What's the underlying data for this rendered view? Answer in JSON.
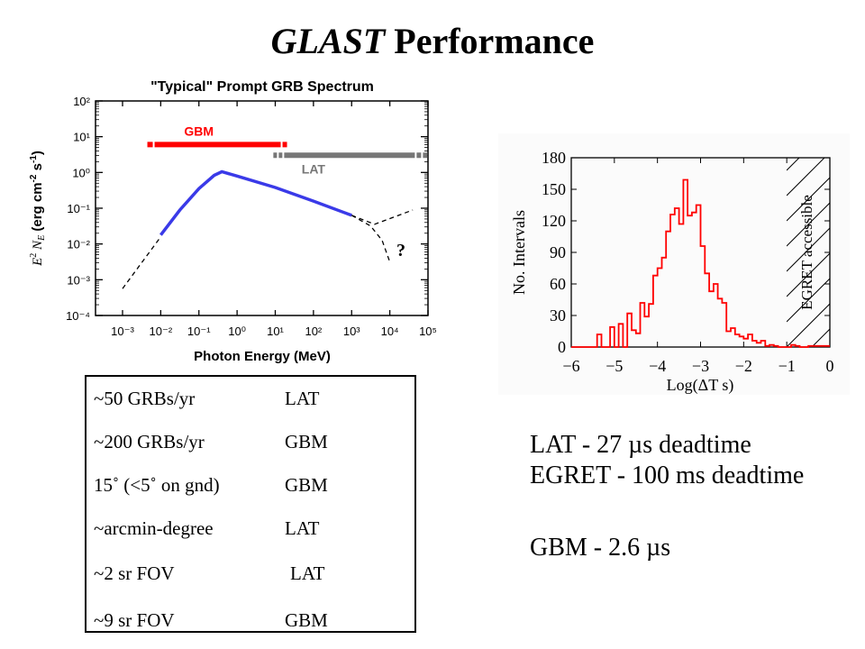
{
  "slide": {
    "title_italic": "GLAST",
    "title_rest": " Performance"
  },
  "chart_data": [
    {
      "type": "line",
      "title": "\"Typical\" Prompt GRB Spectrum",
      "xlabel": "Photon Energy (MeV)",
      "ylabel": "E² N_E (erg cm⁻² s⁻¹)",
      "xscale": "log",
      "yscale": "log",
      "xlim": [
        0.0002,
        100000
      ],
      "ylim": [
        0.0001,
        100
      ],
      "x_ticks": [
        "10⁻³",
        "10⁻²",
        "10⁻¹",
        "10⁰",
        "10¹",
        "10²",
        "10³",
        "10⁴",
        "10⁵"
      ],
      "y_ticks": [
        "10²",
        "10¹",
        "10⁰",
        "10⁻¹",
        "10⁻²",
        "10⁻³",
        "10⁻⁴"
      ],
      "series": [
        {
          "name": "measured spectrum",
          "style": "solid",
          "color": "#3a3ae8",
          "log_points": [
            [
              -2.0,
              -1.75
            ],
            [
              -1.5,
              -1.05
            ],
            [
              -1.0,
              -0.45
            ],
            [
              -0.6,
              -0.08
            ],
            [
              -0.4,
              0.02
            ],
            [
              0.0,
              -0.1
            ],
            [
              1.0,
              -0.42
            ],
            [
              2.0,
              -0.8
            ],
            [
              3.0,
              -1.2
            ]
          ]
        },
        {
          "name": "low-energy extrapolation",
          "style": "dashed",
          "color": "#000000",
          "log_points": [
            [
              -3.0,
              -3.25
            ],
            [
              -2.0,
              -1.8
            ]
          ]
        },
        {
          "name": "high-energy extension",
          "style": "dashed",
          "color": "#000000",
          "log_points": [
            [
              3.0,
              -1.2
            ],
            [
              3.6,
              -1.45
            ],
            [
              4.6,
              -1.05
            ]
          ]
        },
        {
          "name": "high-energy cutoff",
          "style": "dashed",
          "color": "#000000",
          "log_points": [
            [
              3.0,
              -1.2
            ],
            [
              3.5,
              -1.5
            ],
            [
              3.8,
              -1.9
            ],
            [
              4.0,
              -2.5
            ]
          ]
        }
      ],
      "bands": [
        {
          "name": "GBM",
          "color": "#ff0000",
          "log_x_range": [
            -2.35,
            1.4
          ],
          "log_y": 0.78
        },
        {
          "name": "LAT",
          "color": "#777777",
          "log_x_range": [
            0.95,
            5.0
          ],
          "log_y": 0.48
        }
      ],
      "annotations": [
        "?"
      ]
    },
    {
      "type": "bar",
      "histogram": true,
      "title": "",
      "xlabel": "Log(ΔT s)",
      "ylabel": "No. Intervals",
      "xlim": [
        -6,
        0
      ],
      "ylim": [
        0,
        180
      ],
      "x_ticks": [
        "−6",
        "−5",
        "−4",
        "−3",
        "−2",
        "−1",
        "0"
      ],
      "y_ticks": [
        "0",
        "30",
        "60",
        "90",
        "120",
        "150",
        "180"
      ],
      "bin_width": 0.1,
      "bin_start": -6.0,
      "color": "#ff0000",
      "values": [
        0,
        0,
        0,
        0,
        0,
        0,
        12,
        0,
        0,
        19,
        0,
        22,
        0,
        32,
        16,
        13,
        42,
        29,
        41,
        68,
        75,
        85,
        110,
        126,
        132,
        117,
        159,
        125,
        128,
        135,
        96,
        70,
        53,
        60,
        46,
        42,
        15,
        18,
        12,
        10,
        8,
        12,
        6,
        4,
        6,
        1,
        2,
        1,
        0,
        0,
        0,
        2,
        1,
        0,
        0,
        1,
        1,
        1,
        1,
        1
      ],
      "shaded_region": {
        "label": "EGRET accessible",
        "x_range": [
          -1,
          0
        ]
      }
    }
  ],
  "table": {
    "rows": [
      {
        "feature": "~50 GRBs/yr",
        "instrument": "LAT"
      },
      {
        "feature": "~200 GRBs/yr",
        "instrument": "GBM"
      },
      {
        "feature": "15˚ (<5˚ on gnd)",
        "instrument": "GBM"
      },
      {
        "feature": "~arcmin-degree",
        "instrument": "LAT"
      },
      {
        "feature": "~2 sr FOV",
        "instrument": "LAT"
      },
      {
        "feature": "~9 sr FOV",
        "instrument": "GBM"
      }
    ]
  },
  "notes": {
    "line1": "LAT - 27 µs deadtime",
    "line2": "EGRET - 100 ms deadtime",
    "line3": "GBM - 2.6 µs"
  }
}
